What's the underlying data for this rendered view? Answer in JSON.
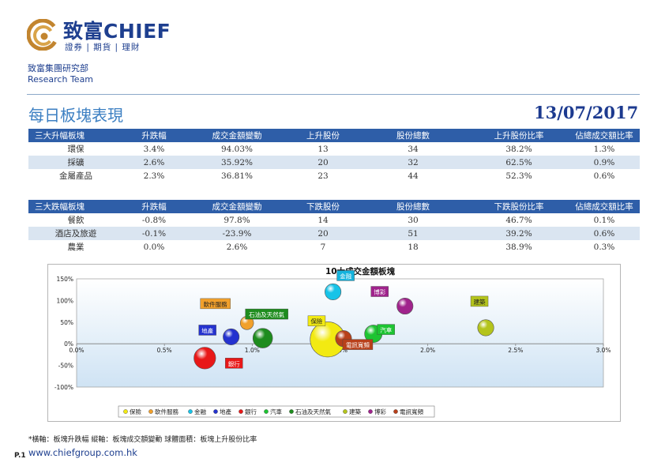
{
  "header": {
    "brand": "致富CHIEF",
    "brand_sub": "證券 | 期貨 | 理財",
    "dept_cn": "致富集團研究部",
    "dept_en": "Research Team"
  },
  "title": "每日板塊表現",
  "date": "13/07/2017",
  "gainers": {
    "headers": [
      "三大升幅板塊",
      "升跌幅",
      "成交金額變動",
      "上升股份",
      "股份總數",
      "上升股份比率",
      "佔總成交額比率"
    ],
    "rows": [
      [
        "環保",
        "3.4%",
        "94.03%",
        "13",
        "34",
        "38.2%",
        "1.3%"
      ],
      [
        "採礦",
        "2.6%",
        "35.92%",
        "20",
        "32",
        "62.5%",
        "0.9%"
      ],
      [
        "金屬產品",
        "2.3%",
        "36.81%",
        "23",
        "44",
        "52.3%",
        "0.6%"
      ]
    ]
  },
  "losers": {
    "headers": [
      "三大跌幅板塊",
      "升跌幅",
      "成交金額變動",
      "下跌股份",
      "股份總數",
      "下跌股份比率",
      "佔總成交額比率"
    ],
    "rows": [
      [
        "餐飲",
        "-0.8%",
        "97.8%",
        "14",
        "30",
        "46.7%",
        "0.1%"
      ],
      [
        "酒店及旅遊",
        "-0.1%",
        "-23.9%",
        "20",
        "51",
        "39.2%",
        "0.6%"
      ],
      [
        "農業",
        "0.0%",
        "2.6%",
        "7",
        "18",
        "38.9%",
        "0.3%"
      ]
    ]
  },
  "chart_data": {
    "type": "scatter",
    "subtype": "bubble",
    "title": "10大成交金額板塊",
    "xlim": [
      0,
      3
    ],
    "ylim": [
      -100,
      150
    ],
    "x_ticks": [
      "0.0%",
      "0.5%",
      "1.0%",
      "1.5%",
      "2.0%",
      "2.5%",
      "3.0%"
    ],
    "y_ticks": [
      "150%",
      "100%",
      "50%",
      "0%",
      "-50%",
      "-100%"
    ],
    "legend_position": "bottom",
    "series": [
      {
        "name": "保險",
        "x": 1.43,
        "y": 10,
        "r": 0.1,
        "color": "#f2ea12"
      },
      {
        "name": "軟件服務",
        "x": 0.97,
        "y": 48,
        "r": 0.038,
        "color": "#f1a02b"
      },
      {
        "name": "金融",
        "x": 1.46,
        "y": 120,
        "r": 0.046,
        "color": "#17c3e8"
      },
      {
        "name": "地產",
        "x": 0.88,
        "y": 16,
        "r": 0.046,
        "color": "#2432cf"
      },
      {
        "name": "銀行",
        "x": 0.73,
        "y": -33,
        "r": 0.062,
        "color": "#e81818"
      },
      {
        "name": "汽車",
        "x": 1.69,
        "y": 23,
        "r": 0.05,
        "color": "#1dc432"
      },
      {
        "name": "石油及天然氣",
        "x": 1.06,
        "y": 13,
        "r": 0.056,
        "color": "#1e8c1e"
      },
      {
        "name": "建築",
        "x": 2.33,
        "y": 37,
        "r": 0.046,
        "color": "#b4c41c"
      },
      {
        "name": "博彩",
        "x": 1.87,
        "y": 87,
        "r": 0.046,
        "color": "#a0238c"
      },
      {
        "name": "電訊寬頻",
        "x": 1.52,
        "y": 12,
        "r": 0.046,
        "color": "#b8401a"
      }
    ],
    "labels": [
      {
        "name": "保險",
        "color": "#f2ea12",
        "text_color": "#222222"
      },
      {
        "name": "軟件服務",
        "color": "#f1a02b",
        "text_color": "#222222"
      },
      {
        "name": "金融",
        "color": "#15b3dd",
        "text_color": "#ffffff"
      },
      {
        "name": "地產",
        "color": "#2432cf",
        "text_color": "#ffffff"
      },
      {
        "name": "銀行",
        "color": "#e81818",
        "text_color": "#ffffff"
      },
      {
        "name": "汽車",
        "color": "#1dc432",
        "text_color": "#ffffff"
      },
      {
        "name": "石油及天然氣",
        "color": "#1e8c1e",
        "text_color": "#ffffff"
      },
      {
        "name": "建築",
        "color": "#b4c41c",
        "text_color": "#222222"
      },
      {
        "name": "博彩",
        "color": "#a0238c",
        "text_color": "#ffffff"
      },
      {
        "name": "電訊寬頻",
        "color": "#b8401a",
        "text_color": "#ffffff"
      }
    ]
  },
  "footer": {
    "note": "*橫軸：板塊升跌幅        縱軸：板塊成交額變動        球體面積：板塊上升股份比率",
    "page": "P.1",
    "site": "www.chiefgroup.com.hk"
  }
}
